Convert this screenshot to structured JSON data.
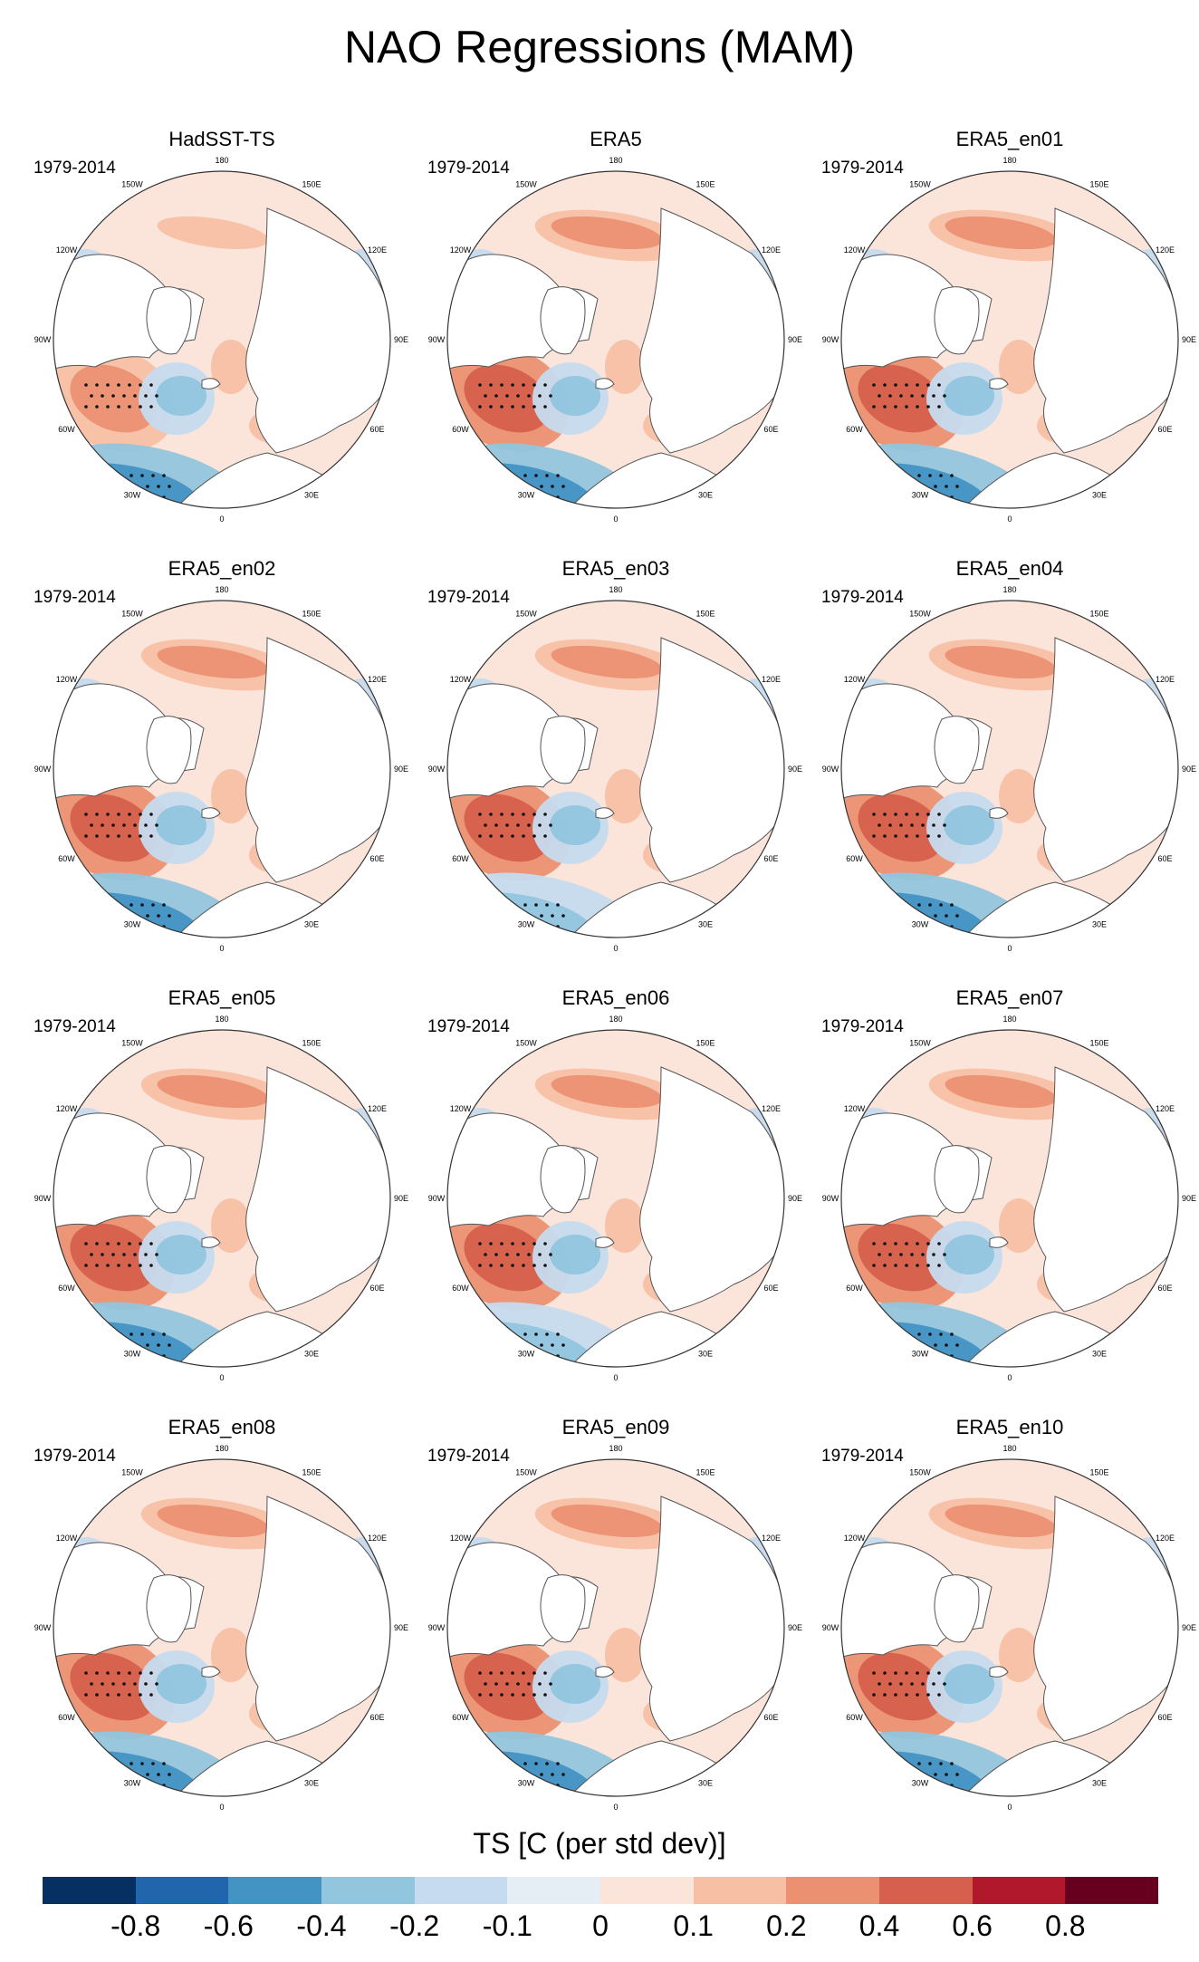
{
  "chart_data": {
    "type": "heatmap",
    "projection": "north-polar-stereographic",
    "title": "NAO Regressions (MAM)",
    "colorbar_label": "TS [C (per std dev)]",
    "colorbar_ticks": [
      "-0.8",
      "-0.6",
      "-0.4",
      "-0.2",
      "-0.1",
      "0",
      "0.1",
      "0.2",
      "0.4",
      "0.6",
      "0.8"
    ],
    "colorbar_colors": [
      "#053061",
      "#2166ac",
      "#4393c3",
      "#92c5de",
      "#c6dbef",
      "#e6eef5",
      "#fbe4da",
      "#f7c0a5",
      "#eb9172",
      "#d6604d",
      "#b2182b",
      "#67001f"
    ],
    "longitude_labels": [
      "180",
      "150E",
      "120E",
      "90E",
      "60E",
      "30E",
      "0",
      "30W",
      "60W",
      "90W",
      "120W",
      "150W"
    ],
    "period": "1979-2014",
    "panels": [
      {
        "name": "HadSST-TS",
        "pacific": 0.14,
        "nw_atlantic": 0.35,
        "subpolar": -0.3,
        "subtropical": -0.5
      },
      {
        "name": "ERA5",
        "pacific": 0.32,
        "nw_atlantic": 0.5,
        "subpolar": -0.35,
        "subtropical": -0.45
      },
      {
        "name": "ERA5_en01",
        "pacific": 0.3,
        "nw_atlantic": 0.5,
        "subpolar": -0.35,
        "subtropical": -0.5
      },
      {
        "name": "ERA5_en02",
        "pacific": 0.32,
        "nw_atlantic": 0.5,
        "subpolar": -0.4,
        "subtropical": -0.5
      },
      {
        "name": "ERA5_en03",
        "pacific": 0.3,
        "nw_atlantic": 0.45,
        "subpolar": -0.35,
        "subtropical": -0.35
      },
      {
        "name": "ERA5_en04",
        "pacific": 0.32,
        "nw_atlantic": 0.5,
        "subpolar": -0.4,
        "subtropical": -0.45
      },
      {
        "name": "ERA5_en05",
        "pacific": 0.3,
        "nw_atlantic": 0.5,
        "subpolar": -0.4,
        "subtropical": -0.5
      },
      {
        "name": "ERA5_en06",
        "pacific": 0.3,
        "nw_atlantic": 0.45,
        "subpolar": -0.35,
        "subtropical": -0.35
      },
      {
        "name": "ERA5_en07",
        "pacific": 0.3,
        "nw_atlantic": 0.5,
        "subpolar": -0.4,
        "subtropical": -0.5
      },
      {
        "name": "ERA5_en08",
        "pacific": 0.32,
        "nw_atlantic": 0.5,
        "subpolar": -0.4,
        "subtropical": -0.5
      },
      {
        "name": "ERA5_en09",
        "pacific": 0.3,
        "nw_atlantic": 0.5,
        "subpolar": -0.35,
        "subtropical": -0.45
      },
      {
        "name": "ERA5_en10",
        "pacific": 0.3,
        "nw_atlantic": 0.45,
        "subpolar": -0.35,
        "subtropical": -0.45
      }
    ]
  }
}
